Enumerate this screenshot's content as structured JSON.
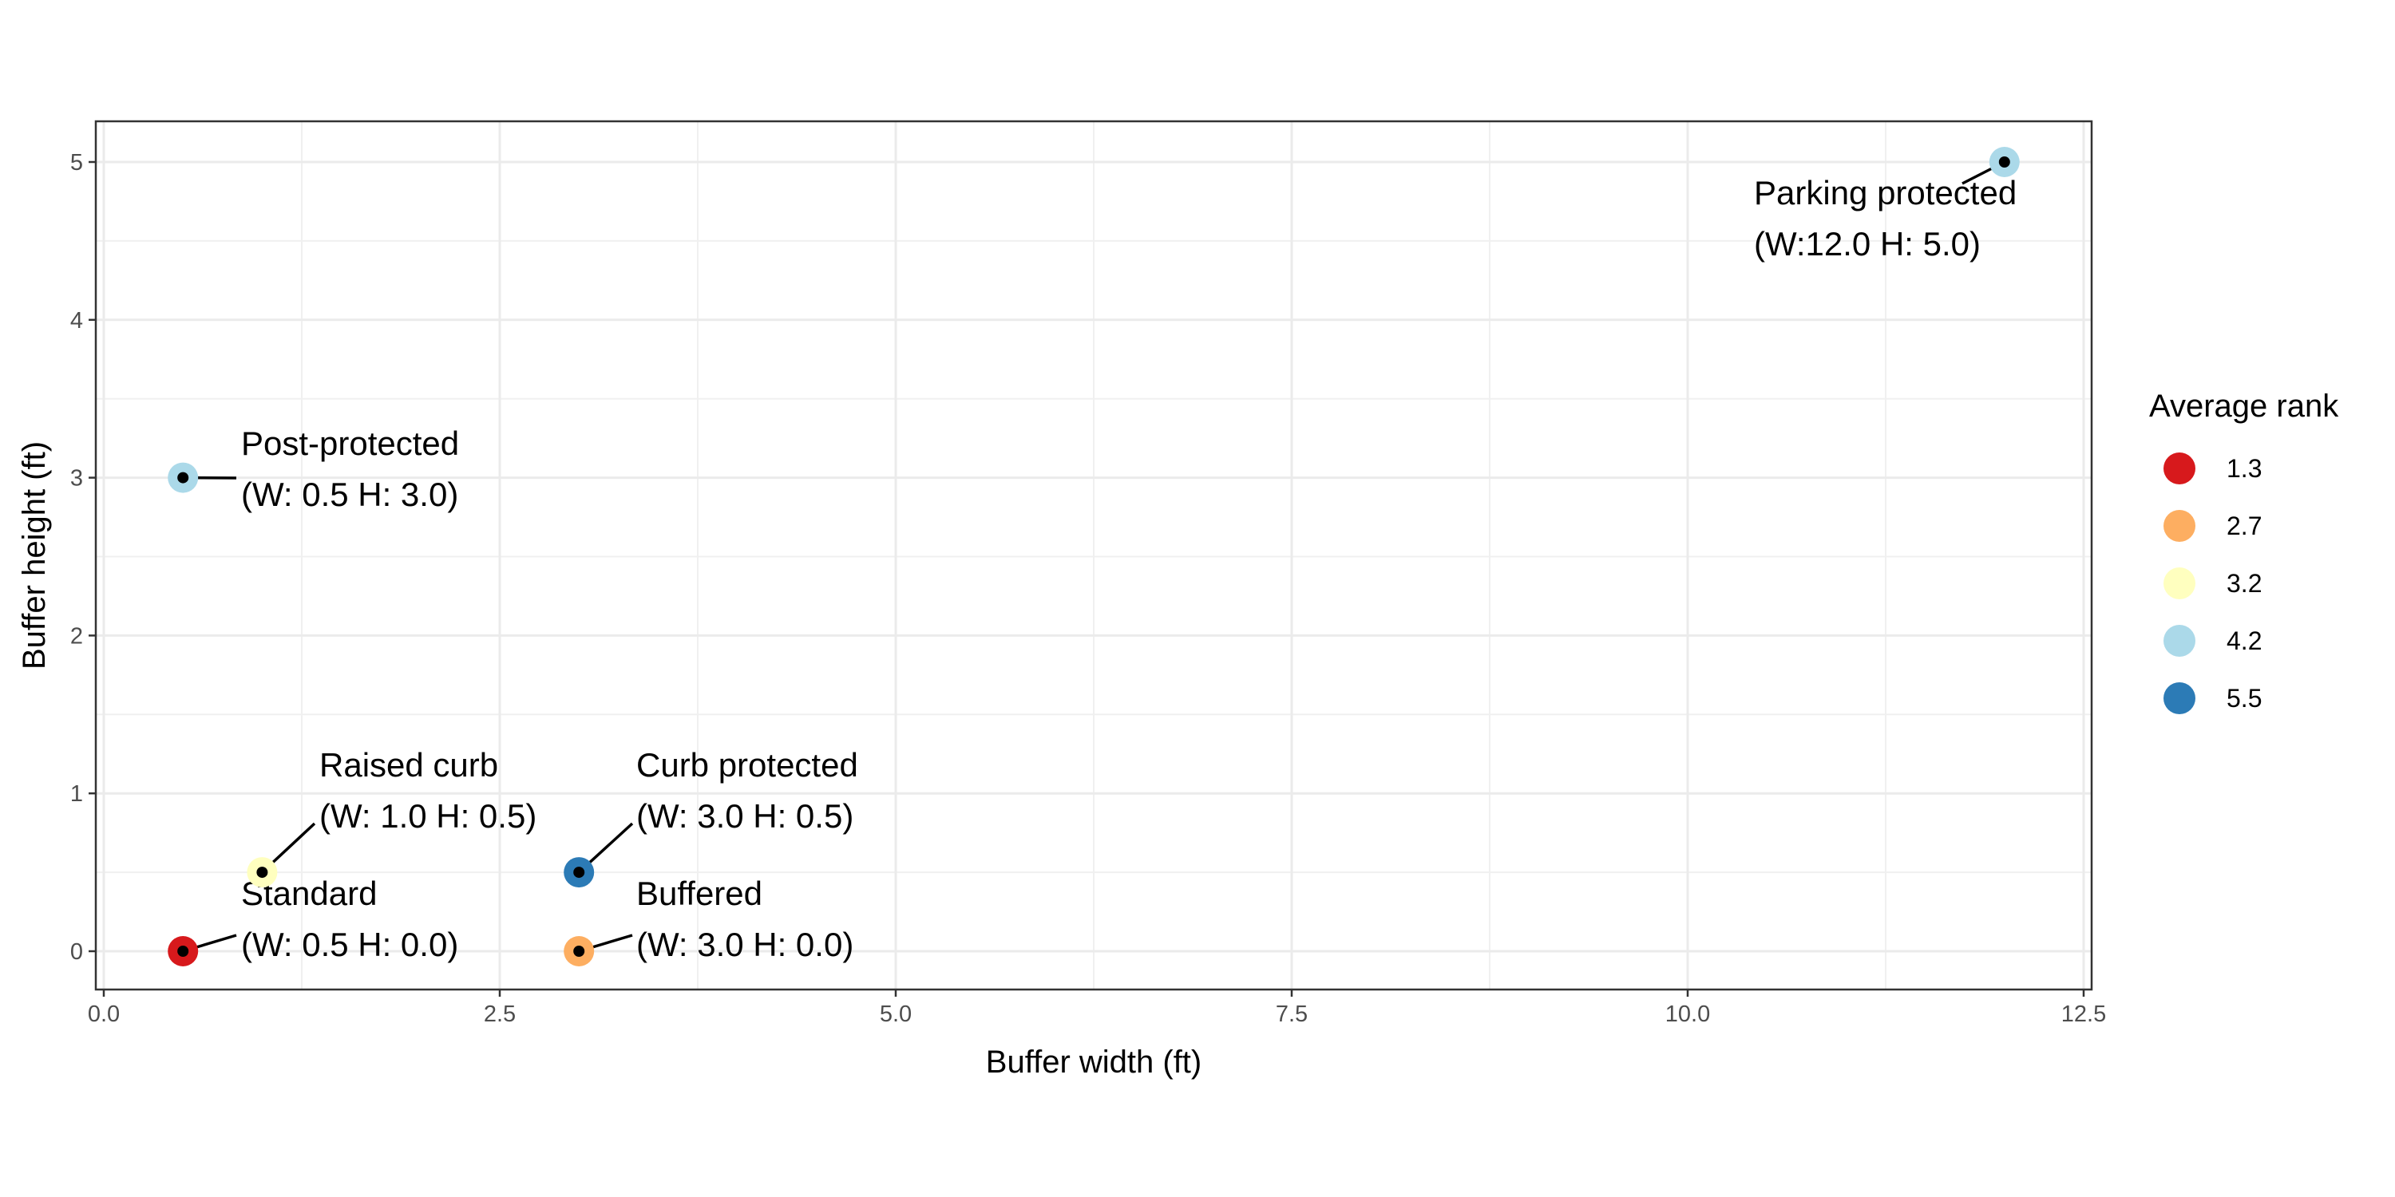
{
  "chart_data": {
    "type": "scatter",
    "title": "",
    "xlabel": "Buffer width (ft)",
    "ylabel": "Buffer height (ft)",
    "xlim": [
      0,
      12.5
    ],
    "ylim": [
      0,
      5
    ],
    "x_ticks": [
      "0.0",
      "2.5",
      "5.0",
      "7.5",
      "10.0",
      "12.5"
    ],
    "y_ticks": [
      "0",
      "1",
      "2",
      "3",
      "4",
      "5"
    ],
    "grid": true,
    "legend": {
      "title": "Average rank",
      "placement": "right",
      "entries": [
        {
          "label": "1.3",
          "color": "#d7191c"
        },
        {
          "label": "2.7",
          "color": "#fdae61"
        },
        {
          "label": "3.2",
          "color": "#ffffbf"
        },
        {
          "label": "4.2",
          "color": "#abd9e9"
        },
        {
          "label": "5.5",
          "color": "#2c7bb6"
        }
      ]
    },
    "points": [
      {
        "name": "Standard",
        "detail": "(W: 0.5 H: 0.0)",
        "x": 0.5,
        "y": 0.0,
        "rank": "1.3",
        "color": "#d7191c"
      },
      {
        "name": "Buffered",
        "detail": "(W: 3.0 H: 0.0)",
        "x": 3.0,
        "y": 0.0,
        "rank": "2.7",
        "color": "#fdae61"
      },
      {
        "name": "Raised curb",
        "detail": "(W: 1.0 H: 0.5)",
        "x": 1.0,
        "y": 0.5,
        "rank": "3.2",
        "color": "#ffffbf"
      },
      {
        "name": "Post-protected",
        "detail": "(W: 0.5 H: 3.0)",
        "x": 0.5,
        "y": 3.0,
        "rank": "4.2",
        "color": "#abd9e9"
      },
      {
        "name": "Parking protected",
        "detail": "(W:12.0 H: 5.0)",
        "x": 12.0,
        "y": 5.0,
        "rank": "4.2",
        "color": "#abd9e9"
      },
      {
        "name": "Curb protected",
        "detail": "(W: 3.0 H: 0.5)",
        "x": 3.0,
        "y": 0.5,
        "rank": "5.5",
        "color": "#2c7bb6"
      }
    ]
  }
}
